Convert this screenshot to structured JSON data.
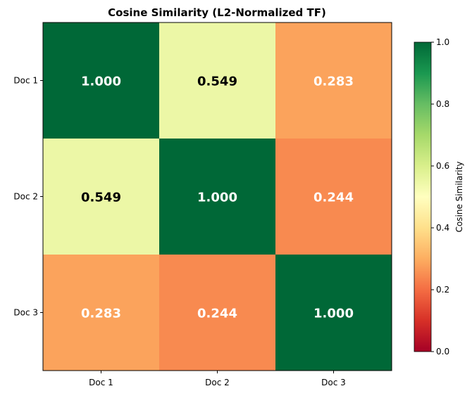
{
  "chart_data": {
    "type": "heatmap",
    "title": "Cosine Similarity (L2-Normalized TF)",
    "x_categories": [
      "Doc 1",
      "Doc 2",
      "Doc 3"
    ],
    "y_categories": [
      "Doc 1",
      "Doc 2",
      "Doc 3"
    ],
    "values": [
      [
        1.0,
        0.549,
        0.283
      ],
      [
        0.549,
        1.0,
        0.244
      ],
      [
        0.283,
        0.244,
        1.0
      ]
    ],
    "value_labels": [
      [
        "1.000",
        "0.549",
        "0.283"
      ],
      [
        "0.549",
        "1.000",
        "0.244"
      ],
      [
        "0.283",
        "0.244",
        "1.000"
      ]
    ],
    "colormap": "RdYlGn",
    "colormap_stops": [
      "#a50026",
      "#d73027",
      "#f46d43",
      "#fdae61",
      "#fee08b",
      "#ffffbf",
      "#d9ef8b",
      "#a6d96a",
      "#66bd63",
      "#1a9850",
      "#006837"
    ],
    "vmin": 0,
    "vmax": 1,
    "colorbar": {
      "label": "Cosine Similarity",
      "ticks": [
        "0.0",
        "0.2",
        "0.4",
        "0.6",
        "0.8",
        "1.0"
      ],
      "tick_values": [
        0,
        0.2,
        0.4,
        0.6,
        0.8,
        1.0
      ]
    },
    "text_colors": {
      "dark_cell": "#ffffff",
      "light_cell": "#000000"
    }
  }
}
